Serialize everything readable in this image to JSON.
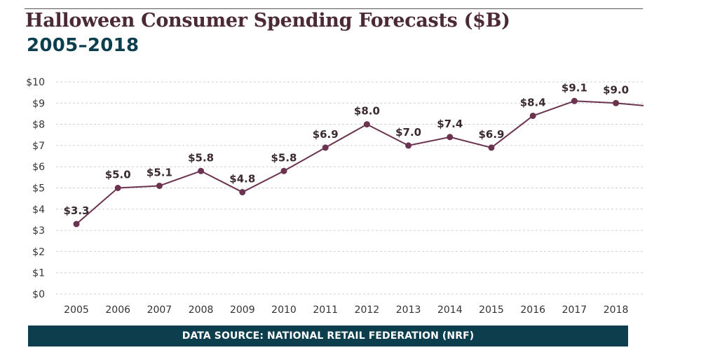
{
  "header": {
    "title": "Halloween Consumer Spending Forecasts ($B)",
    "subtitle": "2005–2018"
  },
  "footer": {
    "source": "DATA SOURCE: NATIONAL RETAIL FEDERATION (NRF)"
  },
  "chart_data": {
    "type": "line",
    "title": "Halloween Consumer Spending Forecasts ($B)",
    "subtitle": "2005–2018",
    "xlabel": "",
    "ylabel": "",
    "categories": [
      "2005",
      "2006",
      "2007",
      "2008",
      "2009",
      "2010",
      "2011",
      "2012",
      "2013",
      "2014",
      "2015",
      "2016",
      "2017",
      "2018"
    ],
    "values": [
      3.3,
      5.0,
      5.1,
      5.8,
      4.8,
      5.8,
      6.9,
      8.0,
      7.0,
      7.4,
      6.9,
      8.4,
      9.1,
      9.0
    ],
    "data_labels": [
      "$3.3",
      "$5.0",
      "$5.1",
      "$5.8",
      "$4.8",
      "$5.8",
      "$6.9",
      "$8.0",
      "$7.0",
      "$7.4",
      "$6.9",
      "$8.4",
      "$9.1",
      "$9.0"
    ],
    "ylim": [
      0,
      10
    ],
    "yticks": [
      0,
      1,
      2,
      3,
      4,
      5,
      6,
      7,
      8,
      9,
      10
    ],
    "ytick_labels": [
      "$0",
      "$1",
      "$2",
      "$3",
      "$4",
      "$5",
      "$6",
      "$7",
      "$8",
      "$9",
      "$10"
    ],
    "grid": true,
    "legend": "none",
    "colors": {
      "line": "#6b3350",
      "marker": "#6b3350",
      "grid": "#cfcfcf",
      "label": "#3a2a30",
      "axis_text": "#333333"
    }
  }
}
